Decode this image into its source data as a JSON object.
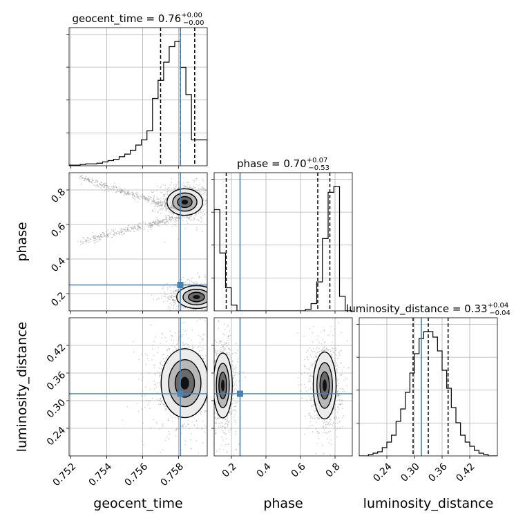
{
  "chart_data": {
    "type": "scatter",
    "subtype": "corner-plot",
    "parameters": [
      "geocent_time",
      "phase",
      "luminosity_distance"
    ],
    "truth": {
      "geocent_time": 0.7581,
      "phase": 0.25,
      "luminosity_distance": 0.315
    },
    "titles": {
      "geocent_time": {
        "prefix": "geocent_time = 0.76",
        "upper": "+0.00",
        "lower": "−0.00"
      },
      "phase": {
        "prefix": "phase = 0.70",
        "upper": "+0.07",
        "lower": "−0.53"
      },
      "luminosity_distance": {
        "prefix": "luminosity_distance = 0.33",
        "upper": "+0.04",
        "lower": "−0.04"
      }
    },
    "axis_labels": {
      "x": [
        "geocent_time",
        "phase",
        "luminosity_distance"
      ],
      "y_phase": "phase",
      "y_luminosity_distance": "luminosity_distance"
    },
    "ranges": {
      "geocent_time": [
        0.7519,
        0.7596
      ],
      "phase": [
        0.1,
        0.9
      ],
      "luminosity_distance": [
        0.18,
        0.48
      ]
    },
    "ticks": {
      "geocent_time": {
        "values": [
          0.752,
          0.754,
          0.756,
          0.758
        ],
        "labels": [
          "0.752",
          "0.754",
          "0.756",
          "0.758"
        ]
      },
      "phase": {
        "values": [
          0.2,
          0.4,
          0.6,
          0.8
        ],
        "labels": [
          "0.2",
          "0.4",
          "0.6",
          "0.8"
        ]
      },
      "luminosity_distance": {
        "values": [
          0.24,
          0.3,
          0.36,
          0.42
        ],
        "labels": [
          "0.24",
          "0.30",
          "0.36",
          "0.42"
        ]
      }
    },
    "quantiles": {
      "geocent_time": [
        0.757,
        0.7581,
        0.7589
      ],
      "phase": [
        0.17,
        0.7,
        0.77
      ],
      "luminosity_distance": [
        0.297,
        0.33,
        0.373
      ]
    },
    "hist_geocent_time": {
      "edges": [
        0.7519,
        0.75221,
        0.75252,
        0.75283,
        0.75314,
        0.75345,
        0.75376,
        0.75407,
        0.75438,
        0.75469,
        0.755,
        0.75531,
        0.75562,
        0.75593,
        0.75624,
        0.75655,
        0.75686,
        0.75717,
        0.75748,
        0.75779,
        0.7581,
        0.75841,
        0.75872,
        0.75903,
        0.75934,
        0.7596
      ],
      "counts": [
        0.5,
        0.5,
        1,
        1.5,
        1.5,
        2,
        3,
        4,
        5,
        7,
        9,
        12,
        16,
        20,
        27,
        52,
        66,
        80,
        92,
        96,
        76,
        55,
        20,
        20,
        20
      ]
    },
    "hist_phase": {
      "edges": [
        0.1,
        0.133,
        0.166,
        0.199,
        0.232,
        0.265,
        0.298,
        0.331,
        0.364,
        0.397,
        0.43,
        0.463,
        0.496,
        0.529,
        0.562,
        0.595,
        0.628,
        0.661,
        0.694,
        0.727,
        0.76,
        0.793,
        0.826,
        0.859,
        0.9
      ],
      "counts": [
        70,
        40,
        16,
        4,
        0,
        0,
        0,
        0,
        0,
        0,
        0,
        0,
        0,
        0,
        0,
        0,
        1,
        5,
        20,
        50,
        82,
        86,
        10,
        0
      ]
    },
    "hist_luminosity_distance": {
      "edges": [
        0.18,
        0.19,
        0.2,
        0.21,
        0.22,
        0.23,
        0.24,
        0.25,
        0.26,
        0.27,
        0.28,
        0.29,
        0.3,
        0.31,
        0.32,
        0.33,
        0.34,
        0.35,
        0.36,
        0.37,
        0.38,
        0.39,
        0.4,
        0.41,
        0.42,
        0.43,
        0.44,
        0.45,
        0.46,
        0.47,
        0.48
      ],
      "counts": [
        0,
        0,
        1,
        2,
        3,
        6,
        10,
        15,
        25,
        34,
        46,
        60,
        74,
        85,
        90,
        90,
        86,
        76,
        62,
        49,
        35,
        24,
        15,
        10,
        7,
        4,
        2,
        1,
        0,
        0
      ]
    },
    "posterior_clusters": [
      {
        "pair": "geocent_time-phase",
        "center": [
          0.75835,
          0.73
        ],
        "spread": [
          0.00045,
          0.035
        ]
      },
      {
        "pair": "geocent_time-phase",
        "center": [
          0.759,
          0.18
        ],
        "spread": [
          0.0005,
          0.03
        ]
      },
      {
        "pair": "phase-luminosity_distance",
        "center": [
          0.15,
          0.333
        ],
        "spread": [
          0.025,
          0.032
        ]
      },
      {
        "pair": "phase-luminosity_distance",
        "center": [
          0.74,
          0.333
        ],
        "spread": [
          0.03,
          0.033
        ]
      },
      {
        "pair": "geocent_time-luminosity_distance",
        "center": [
          0.75835,
          0.338
        ],
        "spread": [
          0.0006,
          0.034
        ]
      }
    ],
    "colors": {
      "truth": "#4682b4",
      "hist": "#000000",
      "grid": "#b0b0b0",
      "scatter": "#888888"
    }
  }
}
